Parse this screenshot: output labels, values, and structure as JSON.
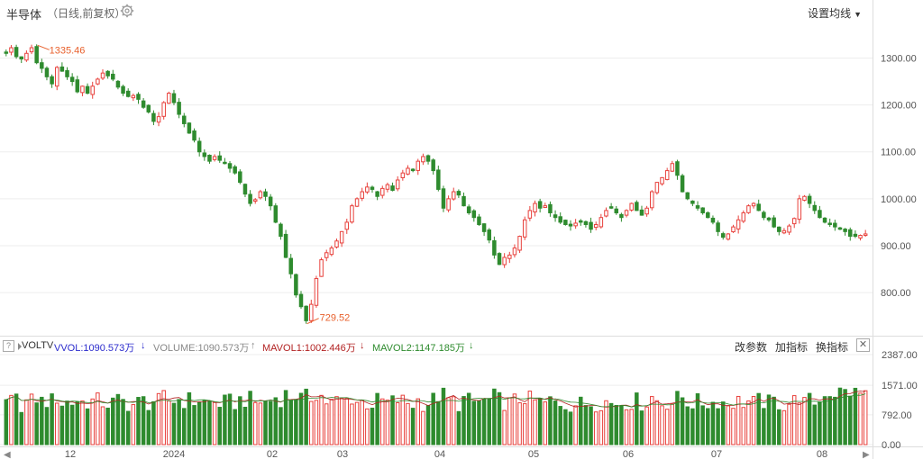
{
  "header": {
    "title": "半导体",
    "subtitle": "（日线,前复权）",
    "set_ma_label": "设置均线"
  },
  "volume_bar": {
    "help": "?",
    "indicator": "VOLTV",
    "vvol": "VVOL:1090.573万",
    "vvol_arrow": "↓",
    "volume": "VOLUME:1090.573万",
    "volume_arrow": "↑",
    "mavol1": "MAVOL1:1002.446万",
    "mavol1_arrow": "↓",
    "mavol2": "MAVOL2:1147.185万",
    "mavol2_arrow": "↓",
    "edit_params": "改参数",
    "add_indicator": "加指标",
    "switch_indicator": "换指标",
    "close": "✕"
  },
  "colors": {
    "up": "#e8413c",
    "down": "#2e8b2e",
    "vvol": "#2b2bcc",
    "volume": "#888888",
    "mavol1": "#b22222",
    "mavol2": "#2e8b2e",
    "annotation": "#e8602c",
    "grid": "#eeeeee"
  },
  "nav": {
    "left": "◀",
    "right": "▶"
  },
  "chart_data": {
    "type": "candlestick",
    "price_axis": {
      "ticks": [
        1300.0,
        1200.0,
        1100.0,
        1000.0,
        900.0,
        800.0
      ],
      "range": [
        710,
        1370
      ]
    },
    "volume_axis": {
      "ticks": [
        "2387.00",
        "1571.00",
        "792.00",
        "0.00"
      ],
      "range": [
        0,
        2387
      ]
    },
    "x_labels": [
      "12",
      "2024",
      "02",
      "03",
      "04",
      "05",
      "06",
      "07",
      "08"
    ],
    "annotations": {
      "high": "1335.46",
      "low": "729.52"
    },
    "closes": [
      1310,
      1322,
      1303,
      1298,
      1310,
      1322,
      1290,
      1278,
      1260,
      1245,
      1280,
      1272,
      1260,
      1250,
      1228,
      1240,
      1225,
      1240,
      1255,
      1268,
      1262,
      1255,
      1238,
      1225,
      1218,
      1220,
      1212,
      1195,
      1185,
      1165,
      1175,
      1205,
      1225,
      1205,
      1180,
      1160,
      1140,
      1125,
      1100,
      1090,
      1080,
      1090,
      1082,
      1075,
      1065,
      1055,
      1035,
      1010,
      990,
      998,
      1015,
      1005,
      985,
      950,
      920,
      875,
      840,
      795,
      770,
      740,
      775,
      830,
      870,
      885,
      895,
      910,
      930,
      950,
      985,
      1000,
      1015,
      1025,
      1020,
      1005,
      1022,
      1030,
      1018,
      1040,
      1055,
      1065,
      1060,
      1080,
      1090,
      1080,
      1060,
      1020,
      980,
      1000,
      1015,
      1008,
      985,
      970,
      960,
      945,
      930,
      912,
      880,
      860,
      875,
      880,
      895,
      920,
      955,
      975,
      990,
      980,
      985,
      970,
      960,
      950,
      945,
      942,
      948,
      950,
      945,
      935,
      945,
      960,
      975,
      980,
      970,
      960,
      975,
      990,
      975,
      965,
      980,
      1015,
      1035,
      1045,
      1060,
      1075,
      1050,
      1015,
      1000,
      990,
      980,
      970,
      960,
      950,
      930,
      918,
      925,
      940,
      955,
      970,
      985,
      990,
      975,
      960,
      955,
      940,
      930,
      932,
      942,
      958,
      1000,
      1005,
      990,
      975,
      960,
      950,
      945,
      940,
      935,
      930,
      920,
      920,
      922,
      925
    ]
  }
}
